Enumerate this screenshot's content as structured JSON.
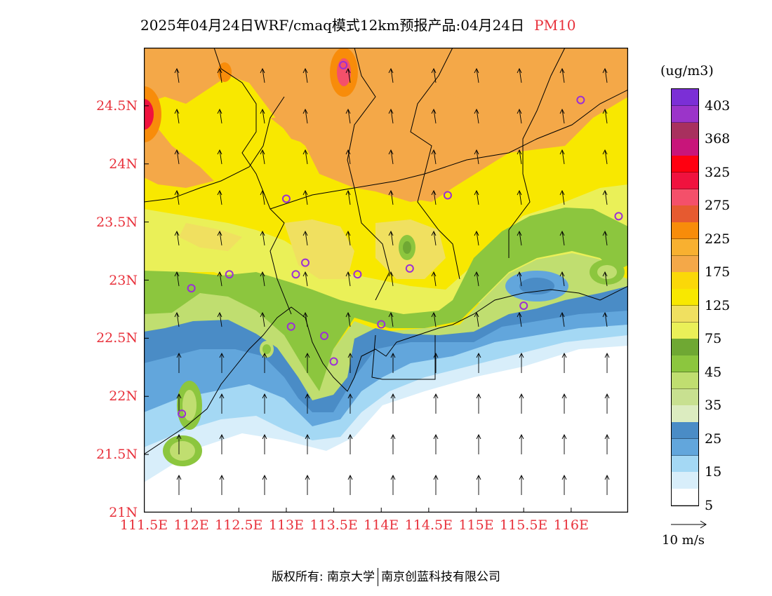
{
  "title": {
    "text": "2025年04月24日WRF/cmaq模式12km预报产品:04月24日",
    "pollutant": "PM10"
  },
  "axes": {
    "lat_labels": [
      "24.5N",
      "24N",
      "23.5N",
      "23N",
      "22.5N",
      "22N",
      "21.5N",
      "21N"
    ],
    "lat_values": [
      24.5,
      24,
      23.5,
      23,
      22.5,
      22,
      21.5,
      21
    ],
    "lon_labels": [
      "111.5E",
      "112E",
      "112.5E",
      "113E",
      "113.5E",
      "114E",
      "114.5E",
      "115E",
      "115.5E",
      "116E"
    ],
    "lon_values": [
      111.5,
      112,
      112.5,
      113,
      113.5,
      114,
      114.5,
      115,
      115.5,
      116
    ],
    "lon_range": [
      111.5,
      116.6
    ],
    "lat_range": [
      21.0,
      25.0
    ],
    "label_color": "#e8323c"
  },
  "colorbar": {
    "unit": "(ug/m3)",
    "labels": [
      "403",
      "368",
      "325",
      "275",
      "225",
      "175",
      "125",
      "75",
      "45",
      "35",
      "25",
      "15",
      "5"
    ],
    "colors": [
      "#7b2fd6",
      "#9b34c9",
      "#a8305e",
      "#c8157a",
      "#ff0010",
      "#f0123e",
      "#f4506a",
      "#e65a30",
      "#f88c0a",
      "#f8b030",
      "#f4a848",
      "#fbd808",
      "#f8e800",
      "#f0e060",
      "#eaf058",
      "#6fa833",
      "#8cc63e",
      "#c0de70",
      "#c8e090",
      "#dcecc0",
      "#4a8cc6",
      "#62a6dc",
      "#a4d8f4",
      "#d8eefa",
      "#ffffff"
    ]
  },
  "wind_reference": {
    "label": "10 m/s"
  },
  "stations": [
    {
      "lon": 113.6,
      "lat": 24.85
    },
    {
      "lon": 116.1,
      "lat": 24.55
    },
    {
      "lon": 113.0,
      "lat": 23.7
    },
    {
      "lon": 114.7,
      "lat": 23.73
    },
    {
      "lon": 116.5,
      "lat": 23.55
    },
    {
      "lon": 113.2,
      "lat": 23.15
    },
    {
      "lon": 113.1,
      "lat": 23.05
    },
    {
      "lon": 112.4,
      "lat": 23.05
    },
    {
      "lon": 112.0,
      "lat": 22.93
    },
    {
      "lon": 113.75,
      "lat": 23.05
    },
    {
      "lon": 114.3,
      "lat": 23.1
    },
    {
      "lon": 113.05,
      "lat": 22.6
    },
    {
      "lon": 113.4,
      "lat": 22.52
    },
    {
      "lon": 114.0,
      "lat": 22.62
    },
    {
      "lon": 113.5,
      "lat": 22.3
    },
    {
      "lon": 115.5,
      "lat": 22.78
    },
    {
      "lon": 111.9,
      "lat": 21.85
    }
  ],
  "footer": {
    "copyright": "版权所有: 南京大学",
    "company": "南京创蓝科技有限公司"
  }
}
